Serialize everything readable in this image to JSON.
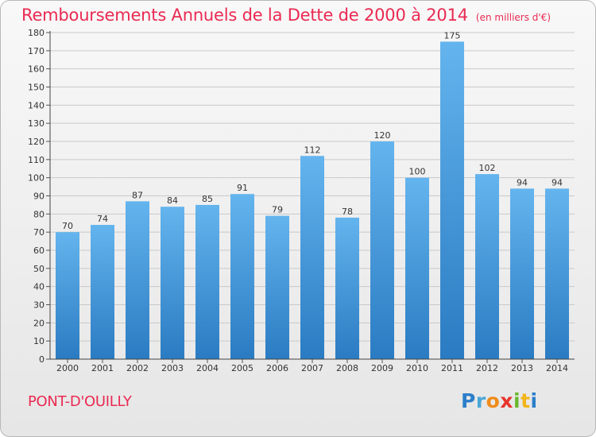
{
  "chart_data": {
    "type": "bar",
    "title": "Remboursements Annuels de la Dette de 2000 à 2014",
    "subtitle": "(en milliers d'€)",
    "categories": [
      "2000",
      "2001",
      "2002",
      "2003",
      "2004",
      "2005",
      "2006",
      "2007",
      "2008",
      "2009",
      "2010",
      "2011",
      "2012",
      "2013",
      "2014"
    ],
    "values": [
      70,
      74,
      87,
      84,
      85,
      91,
      79,
      112,
      78,
      120,
      100,
      175,
      102,
      94,
      94
    ],
    "ylim": [
      0,
      180
    ],
    "ytick_step": 10,
    "xlabel": "",
    "ylabel": "",
    "grid": true,
    "bar_color_top": "#64b4ee",
    "bar_color_bottom": "#2a7bc2"
  },
  "footer": {
    "commune": "PONT-D'OUILLY",
    "logo_letters": [
      "P",
      "r",
      "o",
      "x",
      "i",
      "t",
      "i"
    ],
    "logo_colors": [
      "#2c7fc9",
      "#4aa7d6",
      "#f08c1a",
      "#e8342c",
      "#6ab72e",
      "#f3b51c",
      "#2c7fc9"
    ]
  }
}
